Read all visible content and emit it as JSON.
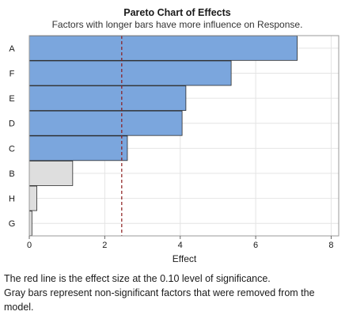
{
  "chart_data": {
    "type": "bar",
    "orientation": "horizontal",
    "title": "Pareto Chart of Effects",
    "subtitle": "Factors with longer bars have more influence on Response.",
    "xlabel": "Effect",
    "ylabel": "",
    "xlim": [
      0,
      8.2
    ],
    "xticks": [
      0,
      2,
      4,
      6,
      8
    ],
    "categories": [
      "A",
      "F",
      "E",
      "D",
      "C",
      "B",
      "H",
      "G"
    ],
    "values": [
      7.1,
      5.35,
      4.15,
      4.05,
      2.6,
      1.15,
      0.2,
      0.07
    ],
    "significant": [
      true,
      true,
      true,
      true,
      true,
      false,
      false,
      false
    ],
    "reference_line": {
      "value": 2.45,
      "color": "#8b1a1a",
      "style": "dashed"
    },
    "colors": {
      "significant": "#7ba6dd",
      "nonsignificant": "#dedede",
      "outline": "#2b2b2b"
    },
    "grid": true
  },
  "notes": {
    "line1": "The red line is the effect size at the 0.10 level of significance.",
    "line2": "Gray bars represent non-significant factors that were removed from the model."
  }
}
